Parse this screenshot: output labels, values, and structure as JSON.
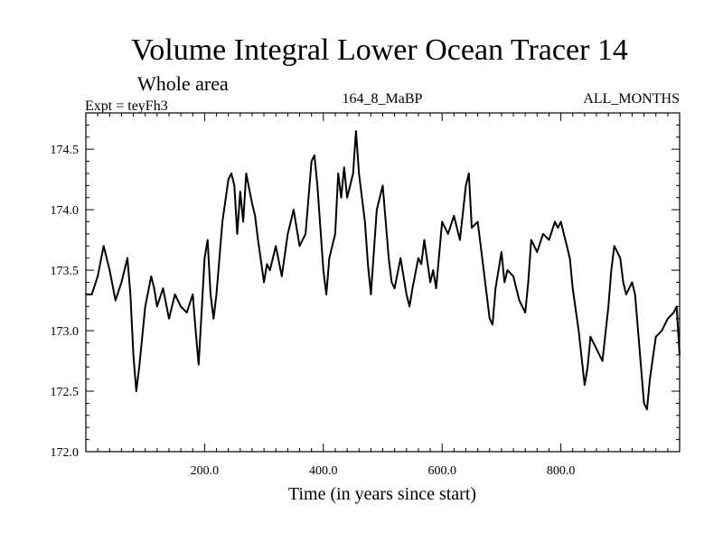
{
  "chart_data": {
    "type": "line",
    "title": "Volume Integral Lower Ocean Tracer 14",
    "subtitle": "Whole area",
    "experiment": "Expt = teyFh3",
    "run_label": "164_8_MaBP",
    "months_label": "ALL_MONTHS",
    "xlabel": "Time (in years since start)",
    "ylabel": "",
    "xlim": [
      0,
      1000
    ],
    "ylim": [
      172.0,
      174.8
    ],
    "x_ticks": [
      200,
      400,
      600,
      800
    ],
    "x_tick_labels": [
      "200.0",
      "400.0",
      "600.0",
      "800.0"
    ],
    "y_ticks": [
      172.0,
      172.5,
      173.0,
      173.5,
      174.0,
      174.5
    ],
    "y_tick_labels": [
      "172.0",
      "172.5",
      "173.0",
      "173.5",
      "174.0",
      "174.5"
    ],
    "series": [
      {
        "name": "Volume Integral Lower Ocean Tracer 14",
        "x": [
          0,
          10,
          20,
          30,
          40,
          50,
          60,
          70,
          75,
          80,
          85,
          90,
          100,
          110,
          115,
          120,
          130,
          140,
          150,
          160,
          170,
          180,
          185,
          190,
          200,
          205,
          210,
          215,
          220,
          230,
          240,
          245,
          250,
          255,
          260,
          265,
          270,
          280,
          285,
          290,
          300,
          305,
          310,
          320,
          330,
          340,
          345,
          350,
          360,
          370,
          380,
          385,
          390,
          400,
          405,
          410,
          420,
          425,
          430,
          435,
          440,
          450,
          455,
          460,
          470,
          475,
          480,
          490,
          500,
          505,
          510,
          515,
          520,
          530,
          540,
          545,
          550,
          560,
          565,
          570,
          580,
          585,
          590,
          600,
          605,
          610,
          620,
          630,
          640,
          645,
          650,
          660,
          670,
          680,
          685,
          690,
          700,
          705,
          710,
          720,
          730,
          740,
          745,
          750,
          760,
          770,
          780,
          790,
          795,
          800,
          810,
          815,
          820,
          830,
          840,
          845,
          850,
          860,
          870,
          880,
          885,
          890,
          900,
          905,
          910,
          920,
          925,
          930,
          940,
          945,
          950,
          960,
          970,
          980,
          990,
          995,
          1000
        ],
        "values": [
          173.3,
          173.3,
          173.45,
          173.7,
          173.5,
          173.25,
          173.4,
          173.6,
          173.3,
          172.8,
          172.5,
          172.7,
          173.2,
          173.45,
          173.35,
          173.2,
          173.35,
          173.1,
          173.3,
          173.2,
          173.15,
          173.3,
          173.0,
          172.72,
          173.6,
          173.75,
          173.3,
          173.1,
          173.3,
          173.9,
          174.25,
          174.3,
          174.2,
          173.8,
          174.15,
          173.9,
          174.3,
          174.05,
          173.95,
          173.75,
          173.4,
          173.55,
          173.5,
          173.7,
          173.45,
          173.8,
          173.9,
          174.0,
          173.7,
          173.8,
          174.4,
          174.45,
          174.2,
          173.5,
          173.3,
          173.6,
          173.8,
          174.3,
          174.1,
          174.35,
          174.1,
          174.3,
          174.65,
          174.3,
          173.9,
          173.55,
          173.3,
          174.0,
          174.2,
          173.9,
          173.6,
          173.4,
          173.35,
          173.6,
          173.3,
          173.2,
          173.35,
          173.6,
          173.55,
          173.75,
          173.4,
          173.5,
          173.35,
          173.9,
          173.85,
          173.8,
          173.95,
          173.75,
          174.2,
          174.3,
          173.85,
          173.9,
          173.5,
          173.1,
          173.05,
          173.35,
          173.65,
          173.4,
          173.5,
          173.45,
          173.25,
          173.15,
          173.4,
          173.75,
          173.65,
          173.8,
          173.75,
          173.9,
          173.85,
          173.9,
          173.7,
          173.6,
          173.35,
          173.0,
          172.55,
          172.7,
          172.95,
          172.85,
          172.75,
          173.2,
          173.5,
          173.7,
          173.6,
          173.4,
          173.3,
          173.4,
          173.3,
          173.0,
          172.4,
          172.35,
          172.6,
          172.95,
          173.0,
          173.1,
          173.15,
          173.2,
          172.8
        ]
      }
    ]
  }
}
